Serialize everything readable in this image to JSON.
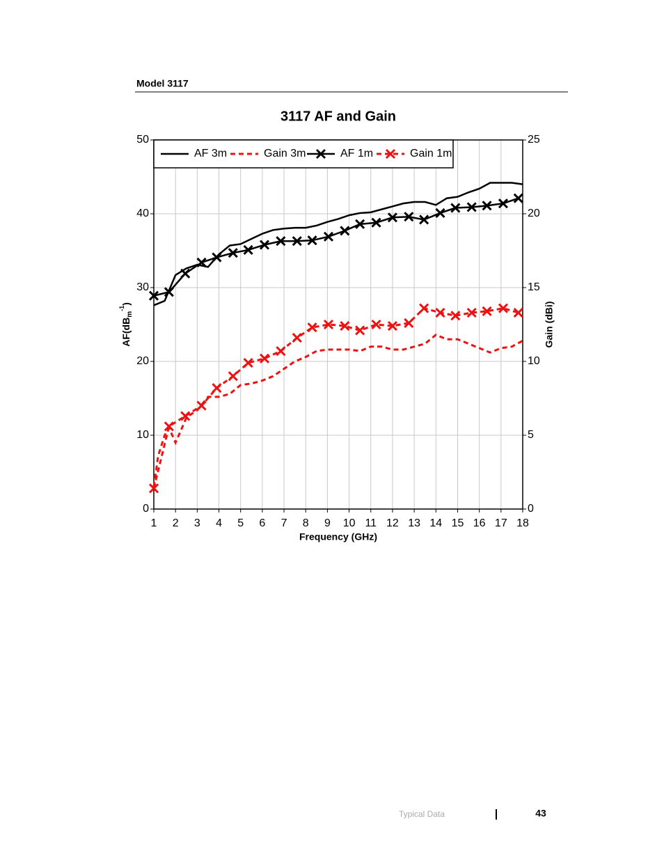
{
  "header": {
    "title": "Model 3117"
  },
  "chart_data": {
    "type": "line",
    "title": "3117 AF and Gain",
    "x_label": "Frequency (GHz)",
    "y_label_parts": [
      "AF(dB",
      "m",
      "-1",
      ")"
    ],
    "y2_label": "Gain (dBi)",
    "xlim": [
      1,
      18
    ],
    "xticks": [
      1,
      2,
      3,
      4,
      5,
      6,
      7,
      8,
      9,
      10,
      11,
      12,
      13,
      14,
      15,
      16,
      17,
      18
    ],
    "ylim": [
      0,
      50
    ],
    "yticks": [
      0,
      10,
      20,
      30,
      40,
      50
    ],
    "y2lim": [
      0,
      25
    ],
    "y2ticks": [
      0,
      5,
      10,
      15,
      20,
      25
    ],
    "grid": true,
    "legend": "top-left",
    "series": [
      {
        "name": "AF 3m",
        "color": "#000000",
        "dashed": false,
        "marker": false,
        "x": [
          1,
          1.5,
          2,
          2.5,
          3,
          3.5,
          4,
          4.5,
          5,
          5.5,
          6,
          6.5,
          7,
          7.5,
          8,
          8.5,
          9,
          9.5,
          10,
          10.5,
          11,
          11.5,
          12,
          12.5,
          13,
          13.5,
          14,
          14.5,
          15,
          15.5,
          16,
          16.5,
          17,
          17.5,
          18
        ],
        "values": [
          27.6,
          28.2,
          31.7,
          32.6,
          33.1,
          32.8,
          34.5,
          35.7,
          35.9,
          36.6,
          37.3,
          37.8,
          38.0,
          38.1,
          38.1,
          38.4,
          38.9,
          39.3,
          39.8,
          40.1,
          40.2,
          40.6,
          41.0,
          41.4,
          41.6,
          41.6,
          41.2,
          42.1,
          42.3,
          42.9,
          43.4,
          44.2,
          44.2,
          44.2,
          44.0
        ]
      },
      {
        "name": "Gain 3m",
        "color": "#ee1111",
        "dashed": true,
        "marker": false,
        "axis": "y2",
        "x": [
          1,
          1.2,
          1.5,
          1.7,
          2,
          2.3,
          2.5,
          3,
          3.5,
          4,
          4.5,
          5,
          5.5,
          6,
          6.5,
          7,
          7.5,
          8,
          8.5,
          9,
          9.5,
          10,
          10.5,
          11,
          11.5,
          12,
          12.5,
          13,
          13.5,
          14,
          14.5,
          15,
          15.5,
          16,
          16.5,
          17,
          17.5,
          18
        ],
        "values": [
          1.5,
          3.6,
          5.0,
          5.5,
          4.5,
          5.5,
          6.2,
          6.7,
          7.6,
          7.6,
          7.8,
          8.4,
          8.5,
          8.7,
          9.0,
          9.5,
          10.0,
          10.3,
          10.7,
          10.8,
          10.8,
          10.8,
          10.7,
          11.0,
          11.0,
          10.8,
          10.8,
          11.0,
          11.2,
          11.8,
          11.5,
          11.5,
          11.2,
          10.9,
          10.6,
          10.9,
          11.0,
          11.4
        ]
      },
      {
        "name": "AF 1m",
        "color": "#000000",
        "dashed": false,
        "marker": true,
        "x": [
          1,
          1.7,
          2.45,
          3.2,
          3.9,
          4.65,
          5.35,
          6.1,
          6.85,
          7.6,
          8.3,
          9.05,
          9.8,
          10.5,
          11.25,
          12,
          12.75,
          13.45,
          14.2,
          14.9,
          15.65,
          16.35,
          17.1,
          17.8
        ],
        "values": [
          28.9,
          29.4,
          31.9,
          33.4,
          34.1,
          34.7,
          35.1,
          35.8,
          36.3,
          36.3,
          36.4,
          36.9,
          37.7,
          38.6,
          38.8,
          39.5,
          39.6,
          39.2,
          40.1,
          40.8,
          40.9,
          41.1,
          41.4,
          42.1
        ]
      },
      {
        "name": "Gain 1m",
        "color": "#ee1111",
        "dashed": true,
        "marker": true,
        "axis": "y2",
        "x": [
          1,
          1.7,
          2.45,
          3.2,
          3.9,
          4.65,
          5.35,
          6.1,
          6.85,
          7.6,
          8.3,
          9.05,
          9.8,
          10.5,
          11.25,
          12,
          12.75,
          13.45,
          14.2,
          14.9,
          15.65,
          16.35,
          17.1,
          17.8
        ],
        "values": [
          1.4,
          5.6,
          6.3,
          7.0,
          8.2,
          9.0,
          9.9,
          10.2,
          10.7,
          11.6,
          12.3,
          12.5,
          12.4,
          12.1,
          12.5,
          12.4,
          12.6,
          13.6,
          13.3,
          13.1,
          13.3,
          13.4,
          13.6,
          13.3
        ]
      }
    ]
  },
  "footer": {
    "section": "Typical Data",
    "page": "43"
  }
}
